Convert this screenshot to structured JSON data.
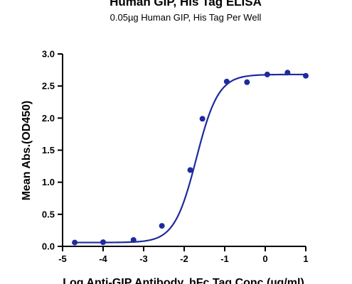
{
  "chart_data": {
    "type": "scatter",
    "title": "Human GIP, His Tag ELISA",
    "subtitle": "0.05µg Human GIP, His Tag Per Well",
    "xlabel": "Log Anti-GIP Antibody, hFc Tag Conc.(µg/ml)",
    "ylabel": "Mean Abs.(OD450)",
    "xlim": [
      -5,
      1
    ],
    "ylim": [
      0,
      3.0
    ],
    "x_ticks": [
      -5,
      -4,
      -3,
      -2,
      -1,
      0,
      1
    ],
    "x_tick_labels": [
      "-5",
      "-4",
      "-3",
      "-2",
      "-1",
      "0",
      "1"
    ],
    "y_ticks": [
      0,
      0.5,
      1.0,
      1.5,
      2.0,
      2.5,
      3.0
    ],
    "y_tick_labels": [
      "0.0",
      "0.5",
      "1.0",
      "1.5",
      "2.0",
      "2.5",
      "3.0"
    ],
    "grid": false,
    "series": [
      {
        "points": [
          {
            "x": -4.7,
            "y": 0.06
          },
          {
            "x": -4.0,
            "y": 0.065
          },
          {
            "x": -3.25,
            "y": 0.1
          },
          {
            "x": -2.55,
            "y": 0.32
          },
          {
            "x": -1.85,
            "y": 1.19
          },
          {
            "x": -1.55,
            "y": 1.99
          },
          {
            "x": -0.95,
            "y": 2.57
          },
          {
            "x": -0.45,
            "y": 2.56
          },
          {
            "x": 0.05,
            "y": 2.68
          },
          {
            "x": 0.55,
            "y": 2.71
          },
          {
            "x": 1.0,
            "y": 2.66
          }
        ],
        "fit": {
          "type": "4PL",
          "bottom": 0.06,
          "top": 2.68,
          "log_ec50": -1.7,
          "hill_slope": 1.6
        },
        "color": "#1f2a9e"
      }
    ]
  }
}
